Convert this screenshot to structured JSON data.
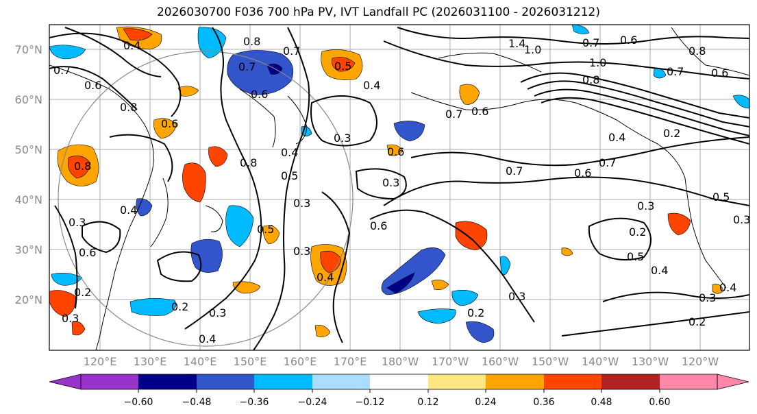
{
  "title": "2026030700 F036 700 hPa PV, IVT Landfall PC (2026031100 - 2026031212)",
  "lat_labels": [
    "70°N",
    "60°N",
    "50°N",
    "40°N",
    "30°N",
    "20°N"
  ],
  "lon_labels": [
    "120°E",
    "130°E",
    "140°E",
    "150°E",
    "160°E",
    "170°E",
    "180°W",
    "170°W",
    "160°W",
    "150°W",
    "140°W",
    "130°W",
    "120°W"
  ],
  "colorbar": {
    "colors": [
      "#9933cc",
      "#000088",
      "#3355cc",
      "#00bbff",
      "#aaddff",
      "#ffffff",
      "#ffe680",
      "#ffa500",
      "#ff4400",
      "#b22222",
      "#ff88aa"
    ],
    "ticks": [
      "−0.60",
      "−0.48",
      "−0.36",
      "−0.24",
      "−0.12",
      "0.12",
      "0.24",
      "0.36",
      "0.48",
      "0.60"
    ]
  },
  "contour_labels": [
    "0.8",
    "0.7",
    "0.6",
    "0.7",
    "0.4",
    "0.5",
    "0.6",
    "0.7",
    "0.8",
    "0.6",
    "0.8",
    "0.3",
    "0.6",
    "0.3",
    "0.7",
    "0.6",
    "0.7",
    "0.6",
    "1.4",
    "1.0",
    "1.0",
    "0.6",
    "0.7",
    "0.8",
    "0.7",
    "0.6",
    "0.8",
    "0.4",
    "0.2",
    "0.3",
    "0.5",
    "0.2",
    "0.3",
    "0.5",
    "0.4",
    "0.3",
    "0.4",
    "0.2",
    "0.3",
    "0.2",
    "0.4",
    "0.5",
    "0.4",
    "0.5",
    "0.3",
    "0.3",
    "0.2",
    "0.3",
    "0.4",
    "0.3",
    "0.6",
    "0.4",
    "0.3",
    "0.2",
    "0.4",
    "0.8",
    "0.7",
    "0.6"
  ]
}
